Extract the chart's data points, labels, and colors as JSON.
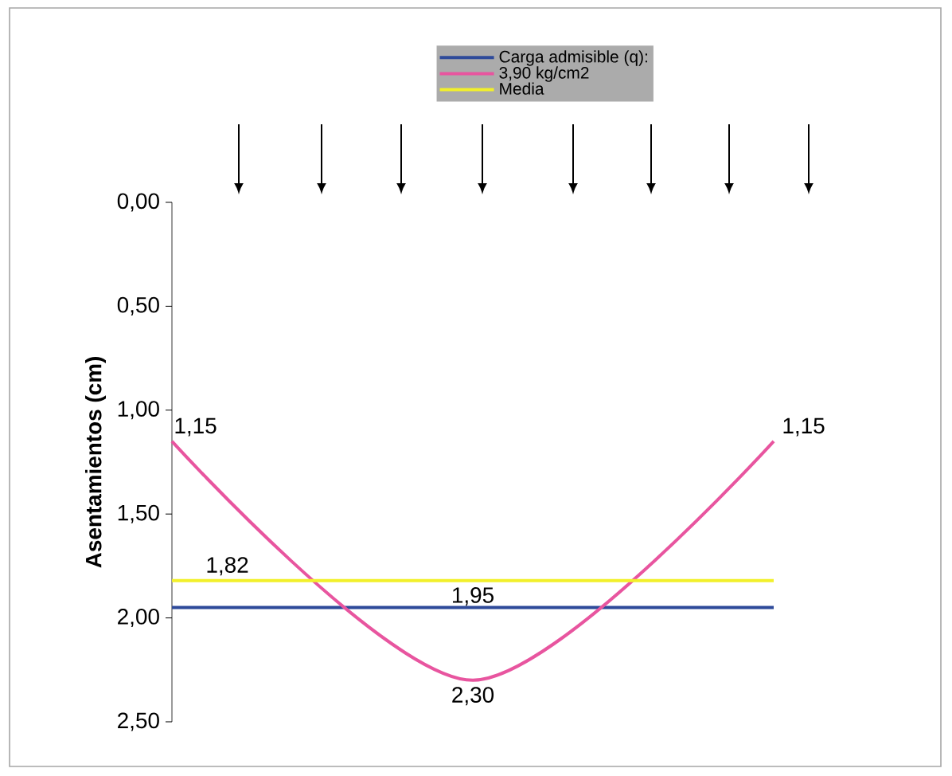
{
  "chart_data": {
    "type": "line",
    "ylabel": "Asentamientos (cm)",
    "categories": [
      null,
      null,
      null
    ],
    "ylim": [
      2.5,
      0
    ],
    "yticks": [
      {
        "value": 0,
        "label": "0,00"
      },
      {
        "value": 0.5,
        "label": "0,50"
      },
      {
        "value": 1,
        "label": "1,00"
      },
      {
        "value": 1.5,
        "label": "1,50"
      },
      {
        "value": 2,
        "label": "2,00"
      },
      {
        "value": 2.5,
        "label": "2,50"
      }
    ],
    "series": [
      {
        "name": "Carga admisible (q):",
        "color": "#2e4a9a",
        "values": [
          1.95,
          1.95,
          1.95
        ],
        "value_labels": [
          null,
          "1,95",
          null
        ]
      },
      {
        "name": "3,90 kg/cm2",
        "color": "#e8559f",
        "values": [
          1.15,
          2.3,
          1.15
        ],
        "value_labels": [
          "1,15",
          "2,30",
          "1,15"
        ]
      },
      {
        "name": "Media",
        "color": "#f2f02a",
        "values": [
          1.82,
          1.82,
          1.82
        ],
        "value_labels": [
          "1,82",
          null,
          null
        ]
      }
    ],
    "legend": "top",
    "marker": "none",
    "grid": false
  }
}
